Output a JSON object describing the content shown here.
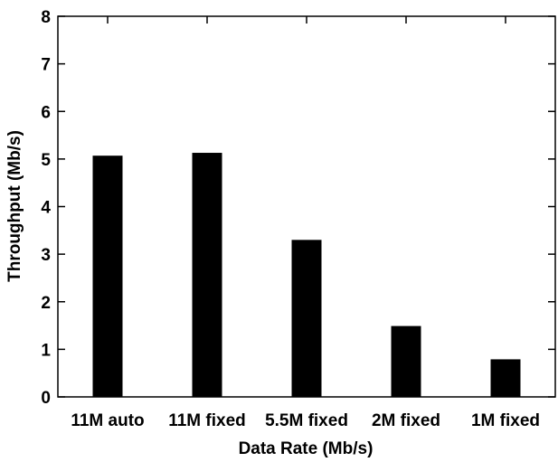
{
  "chart_data": {
    "type": "bar",
    "categories": [
      "11M auto",
      "11M fixed",
      "5.5M fixed",
      "2M fixed",
      "1M fixed"
    ],
    "values": [
      5.07,
      5.13,
      3.3,
      1.49,
      0.79
    ],
    "title": "",
    "xlabel": "Data Rate (Mb/s)",
    "ylabel": "Throughput (Mb/s)",
    "ylim": [
      0,
      8
    ],
    "yticks": [
      "0",
      "1",
      "2",
      "3",
      "4",
      "5",
      "6",
      "7",
      "8"
    ],
    "grid": false,
    "legend": "none",
    "bar_color": "#000000",
    "axis_color": "#000000"
  }
}
